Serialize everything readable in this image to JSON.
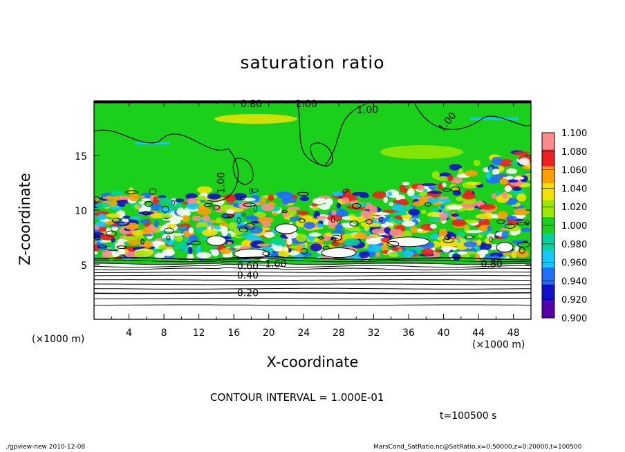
{
  "chart_data": {
    "type": "heatmap",
    "title": "saturation ratio",
    "xlabel": "X-coordinate",
    "ylabel": "Z-coordinate",
    "x_unit": "(×1000 m)",
    "z_unit": "(×1000 m)",
    "xlim": [
      0,
      50
    ],
    "ylim": [
      0,
      20
    ],
    "x_ticks": [
      "4",
      "8",
      "12",
      "16",
      "20",
      "24",
      "28",
      "32",
      "36",
      "40",
      "44",
      "48"
    ],
    "y_ticks": [
      "5",
      "10",
      "15"
    ],
    "colorbar": {
      "levels": [
        "0.900",
        "0.920",
        "0.940",
        "0.960",
        "0.980",
        "1.000",
        "1.020",
        "1.040",
        "1.060",
        "1.080",
        "1.100"
      ],
      "colors": [
        "#5500a8",
        "#1010c8",
        "#1f6fff",
        "#14c8ff",
        "#00d49a",
        "#1ad01a",
        "#9ee800",
        "#f2e200",
        "#ffa000",
        "#f02020",
        "#ff8b8b"
      ]
    },
    "contour_labels": [
      "0.80",
      "1.00",
      "1.00",
      "1.00",
      "1.00",
      "1.00",
      "0.80",
      "0.60",
      "0.40",
      "0.20"
    ],
    "contour_interval_text": "CONTOUR INTERVAL = 1.000E-01",
    "time_text": "t=100500  s"
  },
  "footer": {
    "left": "./gpview-new  2010-12-08",
    "right": "MarsCond_SatRatio.nc@SatRatio,x=0:50000,z=0:20000,t=100500"
  }
}
